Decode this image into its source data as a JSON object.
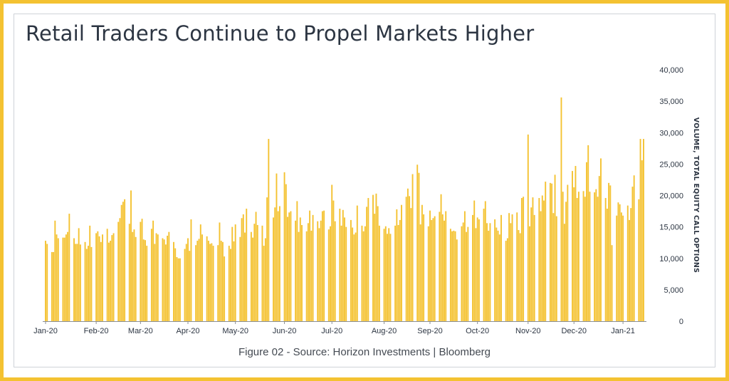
{
  "colors": {
    "bar": "#f4c231",
    "frame": "#f4c231",
    "text": "#2c3542"
  },
  "title": "Retail Traders Continue to Propel Markets Higher",
  "caption": "Figure 02 - Source: Horizon Investments | Bloomberg",
  "chart_data": {
    "type": "bar",
    "title": "Retail Traders Continue to Propel Markets Higher",
    "ylabel": "VOLUME, TOTAL EQUITY CALL OPTIONS",
    "xlabel": "",
    "ylim": [
      0,
      40000
    ],
    "y_axis_side": "right",
    "grid": false,
    "yticks": [
      0,
      5000,
      10000,
      15000,
      20000,
      25000,
      30000,
      35000,
      40000
    ],
    "ytick_labels": [
      "0",
      "5,000",
      "10,000",
      "15,000",
      "20,000",
      "25,000",
      "30,000",
      "35,000",
      "40,000"
    ],
    "xtick_labels": [
      "Jan-20",
      "Feb-20",
      "Mar-20",
      "Apr-20",
      "May-20",
      "Jun-20",
      "Jul-20",
      "Aug-20",
      "Sep-20",
      "Oct-20",
      "Nov-20",
      "Dec-20",
      "Jan-21"
    ],
    "start_date": "2020-01-02",
    "values": [
      12800,
      12300,
      11000,
      11000,
      16000,
      13800,
      13200,
      13300,
      13300,
      13800,
      14200,
      17100,
      13200,
      12300,
      12300,
      14800,
      12200,
      12600,
      11500,
      12000,
      15200,
      11800,
      14000,
      14300,
      13500,
      12600,
      13800,
      14700,
      12500,
      12800,
      13700,
      14000,
      15800,
      16400,
      18500,
      19000,
      19400,
      15500,
      20800,
      14200,
      14600,
      13400,
      15800,
      16300,
      13000,
      12900,
      12000,
      14700,
      16000,
      12300,
      14000,
      13800,
      13200,
      13000,
      12200,
      13600,
      14200,
      12600,
      11600,
      10200,
      10000,
      10000,
      11500,
      12300,
      13200,
      11200,
      16200,
      12100,
      12800,
      13100,
      15400,
      13800,
      13500,
      12800,
      12300,
      12400,
      12000,
      12100,
      15700,
      12800,
      12600,
      10300,
      12000,
      11500,
      15000,
      12700,
      15400,
      13400,
      16400,
      17000,
      14100,
      17900,
      14200,
      13300,
      15500,
      17400,
      15300,
      15200,
      12000,
      13200,
      19700,
      29000,
      16500,
      18100,
      23500,
      17500,
      18300,
      23700,
      21800,
      16600,
      17300,
      17500,
      16000,
      19100,
      14200,
      16500,
      15300,
      14300,
      15600,
      17600,
      14400,
      16900,
      15900,
      14800,
      16000,
      17500,
      17600,
      14600,
      15100,
      21700,
      19200,
      15900,
      17900,
      15200,
      17700,
      16500,
      15000,
      16100,
      14900,
      13800,
      14100,
      18400,
      15200,
      14300,
      15100,
      18200,
      19600,
      20100,
      17100,
      20300,
      18300,
      15200,
      14700,
      15100,
      13900,
      14800,
      13900,
      15200,
      17800,
      15300,
      16100,
      18500,
      19800,
      21100,
      19900,
      18000,
      23400,
      24900,
      23600,
      15400,
      18500,
      17000,
      15100,
      17600,
      16100,
      16400,
      16700,
      17400,
      20200,
      17000,
      16000,
      17500,
      14700,
      14300,
      14400,
      14300,
      13000,
      15100,
      15700,
      17500,
      14200,
      15000,
      16900,
      19200,
      14800,
      16500,
      16200,
      17900,
      19100,
      15600,
      14400,
      15600,
      16200,
      14900,
      14400,
      13800,
      16900,
      12800,
      13200,
      17200,
      15600,
      17000,
      17300,
      14500,
      14000,
      19600,
      19800,
      29700,
      15100,
      18100,
      19700,
      16900,
      19600,
      17500,
      20000,
      19200,
      22200,
      22000,
      21900,
      17200,
      23300,
      16700,
      35600,
      20600,
      15500,
      19000,
      21700,
      23900,
      21300,
      24700,
      19600,
      20600,
      20700,
      19800,
      25300,
      28000,
      20600,
      20500,
      21000,
      19800,
      23100,
      25900,
      19600,
      17900,
      22000,
      21600,
      12100,
      16800,
      18900,
      18600,
      17300,
      16800,
      18400,
      16100,
      18000,
      21400,
      23200,
      19400,
      29000,
      25600,
      29000
    ]
  }
}
